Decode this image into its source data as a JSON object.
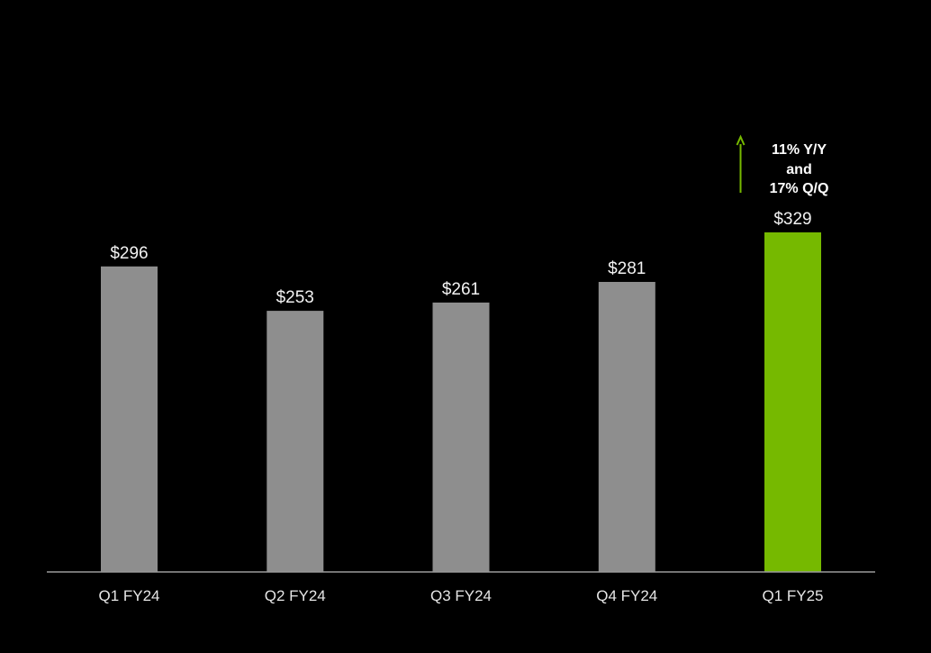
{
  "chart_data": {
    "type": "bar",
    "title": "",
    "xlabel": "",
    "ylabel": "",
    "categories": [
      "Q1 FY24",
      "Q2 FY24",
      "Q3 FY24",
      "Q4 FY24",
      "Q1 FY25"
    ],
    "values": [
      296,
      253,
      261,
      281,
      329
    ],
    "value_labels": [
      "$296",
      "$253",
      "$261",
      "$281",
      "$329"
    ],
    "ylim": [
      0,
      329
    ],
    "highlight_index": 4,
    "bar_color": "#8e8e8e",
    "highlight_color": "#76b900",
    "background_color": "#000000",
    "grid": false,
    "legend": "none",
    "annotation": {
      "lines": [
        "11% Y/Y",
        "and",
        "17% Q/Q"
      ],
      "arrow": "up",
      "arrow_color": "#76b900",
      "target_index": 4
    }
  }
}
